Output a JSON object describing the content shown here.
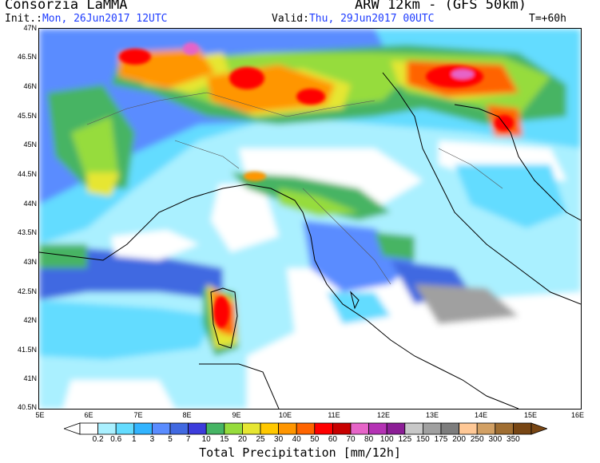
{
  "header": {
    "source": "Consorzia LaMMA",
    "model": "ARW 12km - (GFS 50km)",
    "init_label": "Init.:",
    "init_value": "Mon, 26Jun2017 12UTC",
    "valid_label": "Valid:",
    "valid_value": "Thu, 29Jun2017 00UTC",
    "step": "T=+60h"
  },
  "axes": {
    "lat_ticks": [
      "47N",
      "46.5N",
      "46N",
      "45.5N",
      "45N",
      "44.5N",
      "44N",
      "43.5N",
      "43N",
      "42.5N",
      "42N",
      "41.5N",
      "41N",
      "40.5N"
    ],
    "lon_ticks": [
      "5E",
      "6E",
      "7E",
      "8E",
      "9E",
      "10E",
      "11E",
      "12E",
      "13E",
      "14E",
      "15E",
      "16E"
    ]
  },
  "legend": {
    "title": "Total Precipitation [mm/12h]",
    "labels": [
      "0.2",
      "0.6",
      "1",
      "3",
      "5",
      "7",
      "10",
      "15",
      "20",
      "25",
      "30",
      "40",
      "50",
      "60",
      "70",
      "80",
      "100",
      "125",
      "150",
      "175",
      "200",
      "250",
      "300",
      "350"
    ],
    "colors": [
      "#ffffff",
      "#aaf0ff",
      "#64dcff",
      "#32b4ff",
      "#5a8cff",
      "#4169e1",
      "#3c3cdc",
      "#46b464",
      "#96dc3c",
      "#e6e632",
      "#ffc800",
      "#ff9600",
      "#ff6400",
      "#ff0000",
      "#c80000",
      "#e664c8",
      "#b432b4",
      "#8c1e96",
      "#c8c8c8",
      "#a0a0a0",
      "#7d7d7d",
      "#ffc896",
      "#d2a064",
      "#a06e32",
      "#784614"
    ]
  }
}
